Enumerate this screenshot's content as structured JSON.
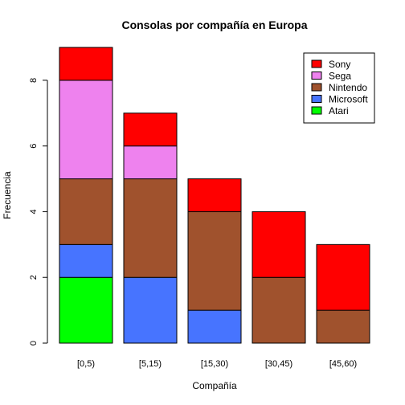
{
  "chart_data": {
    "type": "bar",
    "stacked": true,
    "title": "Consolas por compañía en Europa",
    "xlabel": "Compañía",
    "ylabel": "Frecuencia",
    "categories": [
      "[0,5)",
      "[5,15)",
      "[15,30)",
      "[30,45)",
      "[45,60)"
    ],
    "ylim": [
      0,
      9
    ],
    "yticks": [
      0,
      2,
      4,
      6,
      8
    ],
    "series": [
      {
        "name": "Atari",
        "color": "#00ff00",
        "values": [
          2,
          0,
          0,
          0,
          0
        ]
      },
      {
        "name": "Microsoft",
        "color": "#4774ff",
        "values": [
          1,
          2,
          1,
          0,
          0
        ]
      },
      {
        "name": "Nintendo",
        "color": "#a0522d",
        "values": [
          2,
          3,
          3,
          2,
          1
        ]
      },
      {
        "name": "Sega",
        "color": "#ee82ee",
        "values": [
          3,
          1,
          0,
          0,
          0
        ]
      },
      {
        "name": "Sony",
        "color": "#ff0000",
        "values": [
          1,
          1,
          1,
          2,
          2
        ]
      }
    ],
    "legend": {
      "position": "top-right",
      "order": [
        "Sony",
        "Sega",
        "Nintendo",
        "Microsoft",
        "Atari"
      ]
    },
    "grid": false
  }
}
